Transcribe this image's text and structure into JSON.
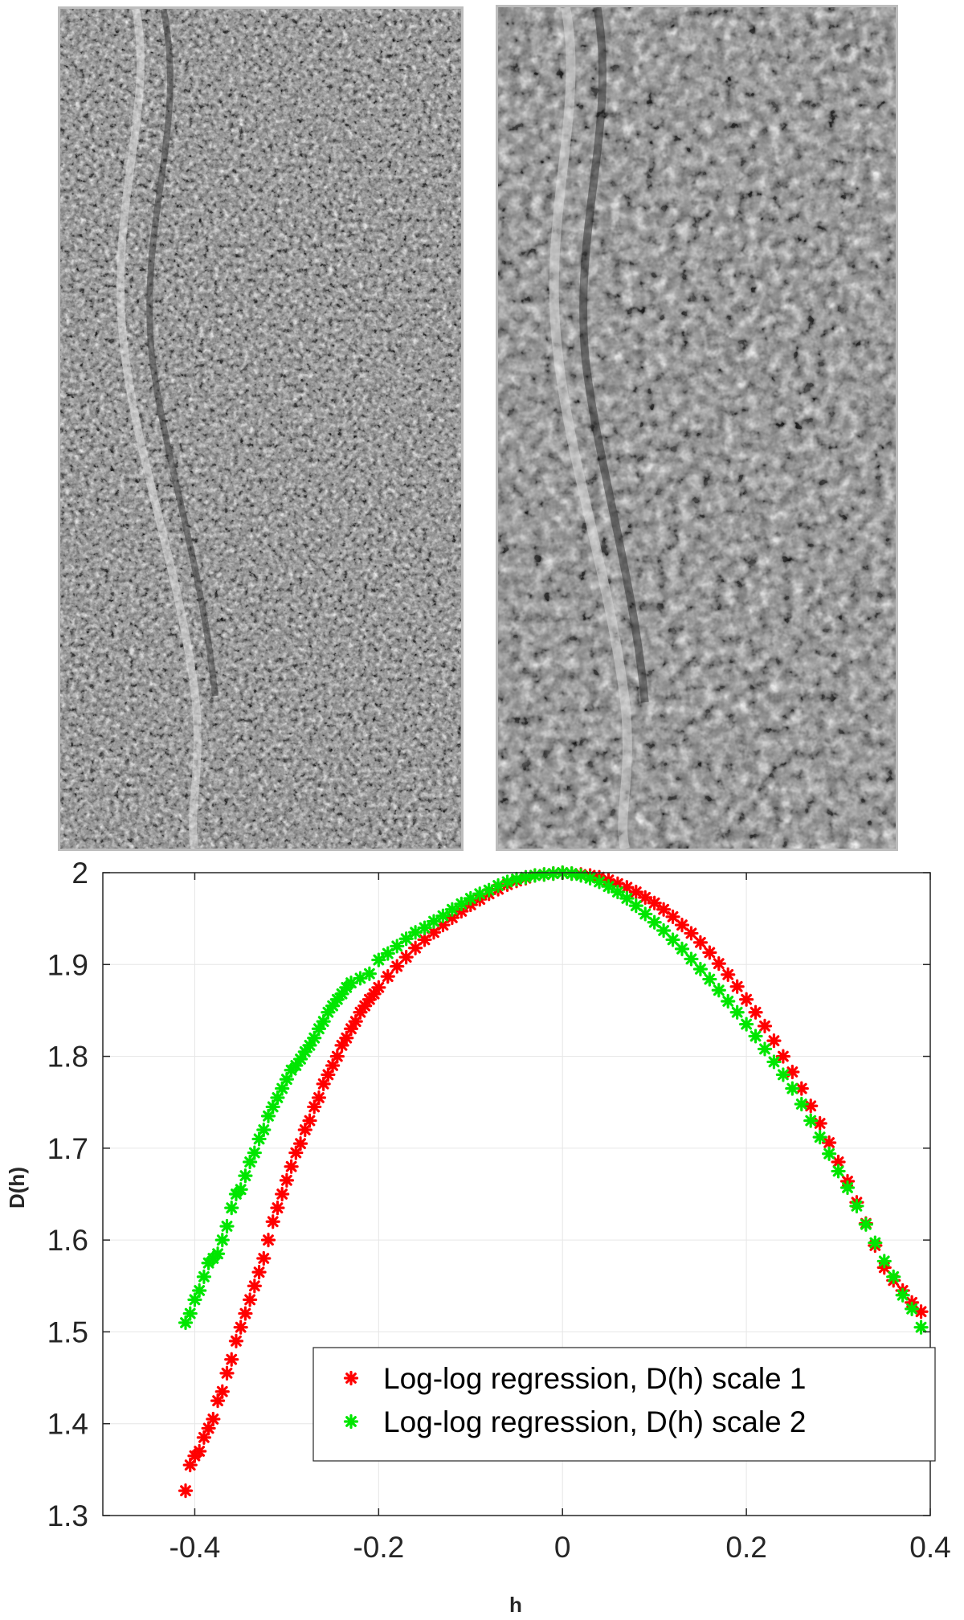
{
  "images": [
    {
      "name": "scale-1-texture",
      "tone": "fine grained grayscale"
    },
    {
      "name": "scale-2-texture",
      "tone": "smoothed grayscale"
    }
  ],
  "colors": {
    "series1": "#ff0000",
    "series2": "#00e600",
    "axis": "#262626",
    "grid": "#e6e6e6"
  },
  "chart_data": {
    "type": "scatter",
    "title": "",
    "xlabel": "h",
    "ylabel": "D(h)",
    "xlim": [
      -0.5,
      0.4
    ],
    "ylim": [
      1.3,
      2.0
    ],
    "xticks": [
      "-0.4",
      "-0.2",
      "0",
      "0.2",
      "0.4"
    ],
    "yticks": [
      "1.3",
      "1.4",
      "1.5",
      "1.6",
      "1.7",
      "1.8",
      "1.9",
      "2"
    ],
    "grid": true,
    "legend_position": "bottom-right",
    "series": [
      {
        "name": "Log-log regression, D(h) scale 1",
        "marker": "asterisk",
        "points": [
          [
            -0.41,
            1.327
          ],
          [
            -0.405,
            1.355
          ],
          [
            -0.4,
            1.365
          ],
          [
            -0.395,
            1.37
          ],
          [
            -0.39,
            1.385
          ],
          [
            -0.385,
            1.395
          ],
          [
            -0.38,
            1.405
          ],
          [
            -0.375,
            1.425
          ],
          [
            -0.37,
            1.435
          ],
          [
            -0.365,
            1.455
          ],
          [
            -0.36,
            1.47
          ],
          [
            -0.355,
            1.49
          ],
          [
            -0.35,
            1.505
          ],
          [
            -0.345,
            1.52
          ],
          [
            -0.34,
            1.535
          ],
          [
            -0.335,
            1.55
          ],
          [
            -0.33,
            1.565
          ],
          [
            -0.325,
            1.58
          ],
          [
            -0.32,
            1.6
          ],
          [
            -0.315,
            1.62
          ],
          [
            -0.31,
            1.635
          ],
          [
            -0.305,
            1.65
          ],
          [
            -0.3,
            1.665
          ],
          [
            -0.295,
            1.68
          ],
          [
            -0.29,
            1.695
          ],
          [
            -0.285,
            1.705
          ],
          [
            -0.28,
            1.72
          ],
          [
            -0.275,
            1.73
          ],
          [
            -0.27,
            1.745
          ],
          [
            -0.265,
            1.755
          ],
          [
            -0.26,
            1.77
          ],
          [
            -0.255,
            1.78
          ],
          [
            -0.25,
            1.79
          ],
          [
            -0.245,
            1.8
          ],
          [
            -0.24,
            1.812
          ],
          [
            -0.235,
            1.82
          ],
          [
            -0.23,
            1.83
          ],
          [
            -0.225,
            1.838
          ],
          [
            -0.22,
            1.848
          ],
          [
            -0.215,
            1.855
          ],
          [
            -0.21,
            1.862
          ],
          [
            -0.205,
            1.868
          ],
          [
            -0.2,
            1.875
          ],
          [
            -0.19,
            1.887
          ],
          [
            -0.18,
            1.898
          ],
          [
            -0.17,
            1.908
          ],
          [
            -0.16,
            1.918
          ],
          [
            -0.15,
            1.927
          ],
          [
            -0.14,
            1.935
          ],
          [
            -0.13,
            1.943
          ],
          [
            -0.12,
            1.951
          ],
          [
            -0.11,
            1.958
          ],
          [
            -0.1,
            1.965
          ],
          [
            -0.09,
            1.971
          ],
          [
            -0.08,
            1.977
          ],
          [
            -0.07,
            1.982
          ],
          [
            -0.06,
            1.987
          ],
          [
            -0.05,
            1.991
          ],
          [
            -0.04,
            1.994
          ],
          [
            -0.03,
            1.997
          ],
          [
            -0.02,
            1.998
          ],
          [
            -0.01,
            1.999
          ],
          [
            0.0,
            2.0
          ],
          [
            0.01,
            1.999
          ],
          [
            0.02,
            1.998
          ],
          [
            0.03,
            1.997
          ],
          [
            0.04,
            1.995
          ],
          [
            0.05,
            1.992
          ],
          [
            0.06,
            1.988
          ],
          [
            0.07,
            1.984
          ],
          [
            0.08,
            1.979
          ],
          [
            0.09,
            1.973
          ],
          [
            0.1,
            1.967
          ],
          [
            0.11,
            1.96
          ],
          [
            0.12,
            1.952
          ],
          [
            0.13,
            1.943
          ],
          [
            0.14,
            1.934
          ],
          [
            0.15,
            1.924
          ],
          [
            0.16,
            1.913
          ],
          [
            0.17,
            1.901
          ],
          [
            0.18,
            1.889
          ],
          [
            0.19,
            1.876
          ],
          [
            0.2,
            1.862
          ],
          [
            0.21,
            1.848
          ],
          [
            0.22,
            1.833
          ],
          [
            0.23,
            1.817
          ],
          [
            0.24,
            1.8
          ],
          [
            0.25,
            1.783
          ],
          [
            0.26,
            1.765
          ],
          [
            0.27,
            1.746
          ],
          [
            0.28,
            1.727
          ],
          [
            0.29,
            1.706
          ],
          [
            0.3,
            1.685
          ],
          [
            0.31,
            1.664
          ],
          [
            0.32,
            1.641
          ],
          [
            0.33,
            1.618
          ],
          [
            0.34,
            1.594
          ],
          [
            0.35,
            1.57
          ],
          [
            0.36,
            1.556
          ],
          [
            0.37,
            1.545
          ],
          [
            0.38,
            1.532
          ],
          [
            0.39,
            1.522
          ]
        ]
      },
      {
        "name": "Log-log regression, D(h) scale 2",
        "marker": "asterisk",
        "points": [
          [
            -0.41,
            1.51
          ],
          [
            -0.405,
            1.52
          ],
          [
            -0.4,
            1.535
          ],
          [
            -0.395,
            1.545
          ],
          [
            -0.39,
            1.56
          ],
          [
            -0.385,
            1.575
          ],
          [
            -0.38,
            1.58
          ],
          [
            -0.375,
            1.585
          ],
          [
            -0.37,
            1.6
          ],
          [
            -0.365,
            1.615
          ],
          [
            -0.36,
            1.635
          ],
          [
            -0.355,
            1.65
          ],
          [
            -0.35,
            1.655
          ],
          [
            -0.345,
            1.67
          ],
          [
            -0.34,
            1.685
          ],
          [
            -0.335,
            1.695
          ],
          [
            -0.33,
            1.71
          ],
          [
            -0.325,
            1.72
          ],
          [
            -0.32,
            1.735
          ],
          [
            -0.315,
            1.745
          ],
          [
            -0.31,
            1.755
          ],
          [
            -0.305,
            1.765
          ],
          [
            -0.3,
            1.775
          ],
          [
            -0.295,
            1.785
          ],
          [
            -0.29,
            1.79
          ],
          [
            -0.285,
            1.797
          ],
          [
            -0.28,
            1.805
          ],
          [
            -0.275,
            1.812
          ],
          [
            -0.27,
            1.82
          ],
          [
            -0.265,
            1.83
          ],
          [
            -0.26,
            1.838
          ],
          [
            -0.255,
            1.848
          ],
          [
            -0.25,
            1.855
          ],
          [
            -0.245,
            1.862
          ],
          [
            -0.24,
            1.868
          ],
          [
            -0.235,
            1.875
          ],
          [
            -0.23,
            1.88
          ],
          [
            -0.22,
            1.885
          ],
          [
            -0.21,
            1.89
          ],
          [
            -0.2,
            1.905
          ],
          [
            -0.19,
            1.912
          ],
          [
            -0.18,
            1.92
          ],
          [
            -0.17,
            1.928
          ],
          [
            -0.16,
            1.935
          ],
          [
            -0.15,
            1.94
          ],
          [
            -0.14,
            1.947
          ],
          [
            -0.13,
            1.953
          ],
          [
            -0.12,
            1.96
          ],
          [
            -0.11,
            1.966
          ],
          [
            -0.1,
            1.972
          ],
          [
            -0.09,
            1.977
          ],
          [
            -0.08,
            1.981
          ],
          [
            -0.07,
            1.986
          ],
          [
            -0.06,
            1.99
          ],
          [
            -0.05,
            1.993
          ],
          [
            -0.04,
            1.995
          ],
          [
            -0.03,
            1.997
          ],
          [
            -0.02,
            1.998
          ],
          [
            -0.01,
            1.999
          ],
          [
            0.0,
            2.0
          ],
          [
            0.01,
            1.999
          ],
          [
            0.02,
            1.997
          ],
          [
            0.03,
            1.994
          ],
          [
            0.04,
            1.99
          ],
          [
            0.05,
            1.985
          ],
          [
            0.06,
            1.979
          ],
          [
            0.07,
            1.972
          ],
          [
            0.08,
            1.964
          ],
          [
            0.09,
            1.955
          ],
          [
            0.1,
            1.946
          ],
          [
            0.11,
            1.937
          ],
          [
            0.12,
            1.927
          ],
          [
            0.13,
            1.917
          ],
          [
            0.14,
            1.906
          ],
          [
            0.15,
            1.895
          ],
          [
            0.16,
            1.884
          ],
          [
            0.17,
            1.872
          ],
          [
            0.18,
            1.86
          ],
          [
            0.19,
            1.848
          ],
          [
            0.2,
            1.835
          ],
          [
            0.21,
            1.822
          ],
          [
            0.22,
            1.808
          ],
          [
            0.23,
            1.794
          ],
          [
            0.24,
            1.78
          ],
          [
            0.25,
            1.765
          ],
          [
            0.26,
            1.748
          ],
          [
            0.27,
            1.73
          ],
          [
            0.28,
            1.712
          ],
          [
            0.29,
            1.694
          ],
          [
            0.3,
            1.675
          ],
          [
            0.31,
            1.657
          ],
          [
            0.32,
            1.637
          ],
          [
            0.33,
            1.617
          ],
          [
            0.34,
            1.597
          ],
          [
            0.35,
            1.577
          ],
          [
            0.36,
            1.56
          ],
          [
            0.37,
            1.54
          ],
          [
            0.38,
            1.525
          ],
          [
            0.39,
            1.505
          ]
        ]
      }
    ]
  }
}
